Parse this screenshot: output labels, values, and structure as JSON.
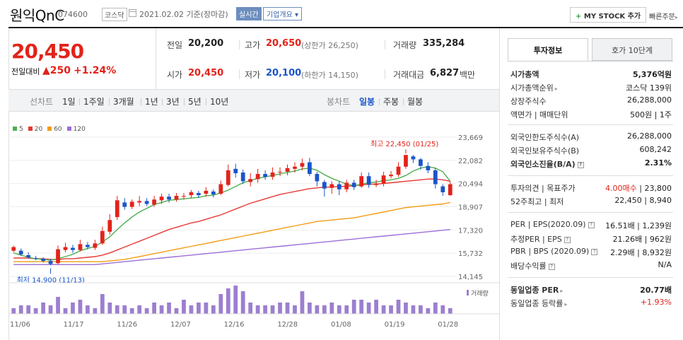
{
  "header": {
    "stock_name": "원익QnC",
    "stock_code": "074600",
    "market": "코스닥",
    "date_text": "2021.02.02  기준(장마감)",
    "realtime": "실시간",
    "company_info": "기업개요",
    "company_caret": "▾",
    "mystock_plus": "+",
    "mystock": "MY STOCK 추가",
    "quick_order": "빠른주문",
    "quick_caret": "▸"
  },
  "price": {
    "current": "20,450",
    "change_label": "전일대비",
    "change_arrow": "▲",
    "change": "250",
    "change_pct": "+1.24%"
  },
  "quote": {
    "prev_close_label": "전일",
    "prev_close": "20,200",
    "high_label": "고가",
    "high": "20,650",
    "high_sub": "(상한가 26,250)",
    "volume_label": "거래량",
    "volume": "335,284",
    "open_label": "시가",
    "open": "20,450",
    "low_label": "저가",
    "low": "20,100",
    "low_sub": "(하한가 14,150)",
    "amount_label": "거래대금",
    "amount": "6,827",
    "amount_unit": "백만"
  },
  "period": {
    "line_label": "선차트",
    "line_items": [
      "1일",
      "1주일",
      "3개월",
      "1년",
      "3년",
      "5년",
      "10년"
    ],
    "candle_label": "봉차트",
    "candle_items": [
      "일봉",
      "주봉",
      "월봉"
    ],
    "active": "일봉"
  },
  "chart_data": {
    "type": "candlestick",
    "title": "",
    "ma_legend": [
      {
        "name": "5",
        "color": "#4caf50"
      },
      {
        "name": "20",
        "color": "#e53935"
      },
      {
        "name": "60",
        "color": "#f39c12"
      },
      {
        "name": "120",
        "color": "#9c6fd6"
      }
    ],
    "y_ticks": [
      "23,669",
      "22,082",
      "20,494",
      "18,907",
      "17,320",
      "15,732",
      "14,145"
    ],
    "ylim": [
      14145,
      23669
    ],
    "x_ticks": [
      "11/06",
      "11/17",
      "11/26",
      "12/07",
      "12/16",
      "12/28",
      "01/08",
      "01/19",
      "01/28"
    ],
    "max_label": "최고 22,450 (01/25)",
    "min_label": "최저 14,900 (11/13)",
    "volume_label": "거래량",
    "candles": [
      [
        15900,
        16150,
        15800,
        16250
      ],
      [
        15900,
        15650,
        15550,
        16050
      ],
      [
        15600,
        15450,
        15350,
        15800
      ],
      [
        15400,
        15350,
        15250,
        15550
      ],
      [
        15350,
        15200,
        15100,
        15450
      ],
      [
        15200,
        15000,
        14900,
        15350
      ],
      [
        15050,
        16000,
        14950,
        16250
      ],
      [
        15950,
        16150,
        15800,
        16450
      ],
      [
        16100,
        15950,
        15750,
        16300
      ],
      [
        15950,
        16350,
        15850,
        16650
      ],
      [
        16300,
        16150,
        16000,
        16500
      ],
      [
        16100,
        16400,
        15950,
        16650
      ],
      [
        16400,
        17250,
        16300,
        17550
      ],
      [
        17200,
        18000,
        17000,
        18400
      ],
      [
        18200,
        19350,
        18000,
        19650
      ],
      [
        19200,
        18900,
        18700,
        19500
      ],
      [
        18900,
        19250,
        18750,
        19400
      ],
      [
        19200,
        19300,
        18950,
        19650
      ],
      [
        19300,
        19100,
        18950,
        19500
      ],
      [
        19050,
        19400,
        18900,
        19650
      ],
      [
        19350,
        19600,
        19100,
        19800
      ],
      [
        19600,
        19400,
        19200,
        19800
      ],
      [
        19400,
        19650,
        19250,
        19850
      ],
      [
        19600,
        19650,
        19400,
        19850
      ],
      [
        19700,
        19900,
        19500,
        20050
      ],
      [
        19850,
        19700,
        19500,
        20000
      ],
      [
        19800,
        20000,
        19600,
        20250
      ],
      [
        19950,
        19750,
        19550,
        20100
      ],
      [
        19800,
        20450,
        19700,
        20700
      ],
      [
        20400,
        21400,
        20300,
        21800
      ],
      [
        21500,
        21200,
        20900,
        21850
      ],
      [
        21250,
        20650,
        20450,
        21450
      ],
      [
        20600,
        20800,
        20300,
        21200
      ],
      [
        20800,
        21150,
        20550,
        21500
      ],
      [
        21150,
        20950,
        20750,
        21400
      ],
      [
        20950,
        21250,
        20750,
        21600
      ],
      [
        21250,
        21300,
        21000,
        21600
      ],
      [
        21300,
        21550,
        21050,
        21800
      ],
      [
        21500,
        21650,
        21250,
        21950
      ],
      [
        21650,
        21900,
        21400,
        22200
      ],
      [
        21950,
        21150,
        21000,
        22250
      ],
      [
        21150,
        20650,
        20300,
        21300
      ],
      [
        20600,
        20150,
        19600,
        20750
      ],
      [
        20200,
        20450,
        19800,
        20650
      ],
      [
        20450,
        20100,
        19700,
        20650
      ],
      [
        20100,
        20550,
        19900,
        20750
      ],
      [
        20550,
        20250,
        20050,
        20750
      ],
      [
        20300,
        21000,
        20200,
        21250
      ],
      [
        21000,
        20400,
        20200,
        21250
      ],
      [
        20400,
        20500,
        20250,
        20750
      ],
      [
        20500,
        21050,
        20300,
        21300
      ],
      [
        21000,
        21100,
        20850,
        21350
      ],
      [
        21100,
        21650,
        20950,
        21950
      ],
      [
        21650,
        22450,
        21500,
        22450
      ],
      [
        22350,
        22150,
        21900,
        22450
      ],
      [
        22150,
        21700,
        21450,
        22250
      ],
      [
        21700,
        21400,
        21200,
        21950
      ],
      [
        21400,
        20450,
        20150,
        21550
      ],
      [
        20300,
        19900,
        19650,
        20450
      ],
      [
        19700,
        20450,
        19650,
        20650
      ]
    ],
    "volumes": [
      2,
      3,
      3,
      2,
      4,
      3,
      6,
      2,
      4,
      5,
      3,
      2,
      7,
      4,
      3,
      3,
      2,
      3,
      2,
      4,
      3,
      4,
      2,
      5,
      3,
      4,
      4,
      3,
      7,
      9,
      10,
      8,
      4,
      3,
      3,
      3,
      4,
      4,
      3,
      8,
      4,
      3,
      3,
      4,
      3,
      3,
      5,
      5,
      4,
      5,
      3,
      3,
      5,
      4,
      3,
      3,
      2,
      4,
      3,
      2
    ],
    "volume_heights_ref": "relative units",
    "ma_lines": {
      "ma5": [
        15750,
        15600,
        15450,
        15350,
        15300,
        15250,
        15350,
        15500,
        15650,
        15900,
        16050,
        16200,
        16500,
        16850,
        17350,
        17800,
        18200,
        18550,
        18800,
        19050,
        19200,
        19350,
        19400,
        19450,
        19500,
        19550,
        19650,
        19700,
        19850,
        20050,
        20300,
        20550,
        20700,
        20850,
        20950,
        21050,
        21150,
        21250,
        21350,
        21500,
        21550,
        21400,
        21100,
        20850,
        20650,
        20450,
        20350,
        20450,
        20550,
        20600,
        20700,
        20750,
        20850,
        21050,
        21350,
        21550,
        21650,
        21550,
        21300,
        20650
      ],
      "ma20": [
        15400,
        15400,
        15400,
        15350,
        15350,
        15300,
        15300,
        15350,
        15350,
        15400,
        15450,
        15500,
        15600,
        15750,
        15950,
        16150,
        16350,
        16550,
        16750,
        16950,
        17150,
        17350,
        17500,
        17650,
        17800,
        17900,
        18050,
        18200,
        18350,
        18550,
        18750,
        18950,
        19150,
        19300,
        19450,
        19600,
        19750,
        19850,
        19950,
        20050,
        20150,
        20200,
        20250,
        20250,
        20300,
        20300,
        20350,
        20400,
        20450,
        20450,
        20500,
        20550,
        20600,
        20650,
        20700,
        20750,
        20800,
        20800,
        20750,
        20650
      ],
      "ma60": [
        15150,
        15150,
        15150,
        15150,
        15150,
        15150,
        15150,
        15150,
        15150,
        15150,
        15150,
        15150,
        15150,
        15200,
        15250,
        15300,
        15400,
        15500,
        15600,
        15700,
        15800,
        15900,
        16000,
        16100,
        16200,
        16300,
        16400,
        16500,
        16600,
        16700,
        16800,
        16900,
        17000,
        17100,
        17200,
        17300,
        17400,
        17500,
        17600,
        17700,
        17800,
        17900,
        17950,
        18000,
        18050,
        18100,
        18150,
        18250,
        18350,
        18450,
        18550,
        18650,
        18750,
        18850,
        18900,
        18950,
        19000,
        19050,
        19100,
        19200
      ],
      "ma120": [
        14950,
        14950,
        14950,
        14950,
        14950,
        14950,
        14950,
        14950,
        14950,
        14950,
        14950,
        14950,
        15000,
        15050,
        15100,
        15150,
        15200,
        15250,
        15300,
        15350,
        15400,
        15450,
        15500,
        15550,
        15600,
        15650,
        15700,
        15750,
        15800,
        15850,
        15900,
        15950,
        16000,
        16050,
        16100,
        16150,
        16200,
        16250,
        16300,
        16350,
        16400,
        16450,
        16500,
        16550,
        16600,
        16650,
        16700,
        16750,
        16800,
        16850,
        16900,
        16950,
        17000,
        17050,
        17100,
        17150,
        17200,
        17250,
        17300,
        17350
      ]
    }
  },
  "right_panel": {
    "tab_invest": "투자정보",
    "tab_hoga": "호가 10단계",
    "market_cap_label": "시가총액",
    "market_cap": "5,376억원",
    "market_cap_rank_label": "시가총액순위",
    "market_cap_rank": "코스닥 139위",
    "shares_label": "상장주식수",
    "shares": "26,288,000",
    "face_label": "액면가 | 매매단위",
    "face": "500원 | 1주",
    "foreign_limit_label": "외국인한도주식수(A)",
    "foreign_limit": "26,288,000",
    "foreign_hold_label": "외국인보유주식수(B)",
    "foreign_hold": "608,242",
    "foreign_ratio_label": "외국인소진율(B/A)",
    "foreign_ratio": "2.31%",
    "opinion_label": "투자의견 | 목표주가",
    "opinion": "4.00매수",
    "target": "| 23,800",
    "w52_label": "52주최고 | 최저",
    "w52": "22,450 | 8,940",
    "per_label": "PER | EPS(2020.09)",
    "per": "16.51배 | 1,239원",
    "est_per_label": "추정PER | EPS",
    "est_per": "21.26배 | 962원",
    "pbr_label": "PBR | BPS (2020.09)",
    "pbr": "2.29배 | 8,932원",
    "dividend_label": "배당수익률",
    "dividend": "N/A",
    "ind_per_label": "동일업종 PER",
    "ind_per": "20.77배",
    "ind_rate_label": "동일업종 등락률",
    "ind_rate": "+1.93%"
  }
}
